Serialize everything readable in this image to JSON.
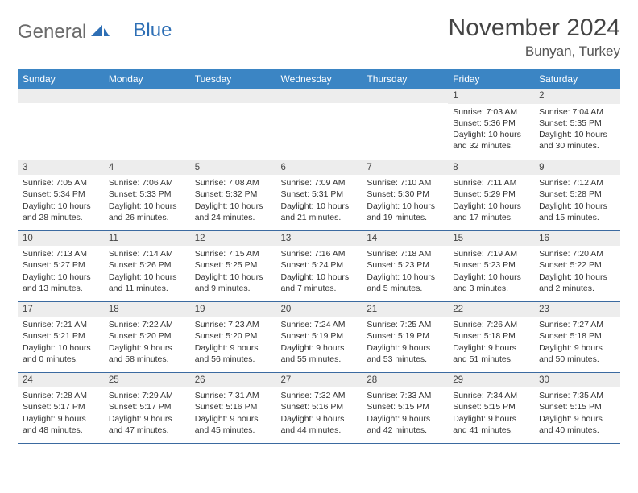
{
  "logo": {
    "part1": "General",
    "part2": "Blue"
  },
  "title": "November 2024",
  "location": "Bunyan, Turkey",
  "colors": {
    "header_bg": "#3b85c4",
    "header_text": "#ffffff",
    "daynum_bg": "#ededed",
    "border": "#3b6aa0",
    "text": "#333333",
    "logo_gray": "#6b6b6b",
    "logo_blue": "#2e6fb5"
  },
  "weekdays": [
    "Sunday",
    "Monday",
    "Tuesday",
    "Wednesday",
    "Thursday",
    "Friday",
    "Saturday"
  ],
  "weeks": [
    [
      null,
      null,
      null,
      null,
      null,
      {
        "n": "1",
        "sunrise": "7:03 AM",
        "sunset": "5:36 PM",
        "daylight": "10 hours and 32 minutes."
      },
      {
        "n": "2",
        "sunrise": "7:04 AM",
        "sunset": "5:35 PM",
        "daylight": "10 hours and 30 minutes."
      }
    ],
    [
      {
        "n": "3",
        "sunrise": "7:05 AM",
        "sunset": "5:34 PM",
        "daylight": "10 hours and 28 minutes."
      },
      {
        "n": "4",
        "sunrise": "7:06 AM",
        "sunset": "5:33 PM",
        "daylight": "10 hours and 26 minutes."
      },
      {
        "n": "5",
        "sunrise": "7:08 AM",
        "sunset": "5:32 PM",
        "daylight": "10 hours and 24 minutes."
      },
      {
        "n": "6",
        "sunrise": "7:09 AM",
        "sunset": "5:31 PM",
        "daylight": "10 hours and 21 minutes."
      },
      {
        "n": "7",
        "sunrise": "7:10 AM",
        "sunset": "5:30 PM",
        "daylight": "10 hours and 19 minutes."
      },
      {
        "n": "8",
        "sunrise": "7:11 AM",
        "sunset": "5:29 PM",
        "daylight": "10 hours and 17 minutes."
      },
      {
        "n": "9",
        "sunrise": "7:12 AM",
        "sunset": "5:28 PM",
        "daylight": "10 hours and 15 minutes."
      }
    ],
    [
      {
        "n": "10",
        "sunrise": "7:13 AM",
        "sunset": "5:27 PM",
        "daylight": "10 hours and 13 minutes."
      },
      {
        "n": "11",
        "sunrise": "7:14 AM",
        "sunset": "5:26 PM",
        "daylight": "10 hours and 11 minutes."
      },
      {
        "n": "12",
        "sunrise": "7:15 AM",
        "sunset": "5:25 PM",
        "daylight": "10 hours and 9 minutes."
      },
      {
        "n": "13",
        "sunrise": "7:16 AM",
        "sunset": "5:24 PM",
        "daylight": "10 hours and 7 minutes."
      },
      {
        "n": "14",
        "sunrise": "7:18 AM",
        "sunset": "5:23 PM",
        "daylight": "10 hours and 5 minutes."
      },
      {
        "n": "15",
        "sunrise": "7:19 AM",
        "sunset": "5:23 PM",
        "daylight": "10 hours and 3 minutes."
      },
      {
        "n": "16",
        "sunrise": "7:20 AM",
        "sunset": "5:22 PM",
        "daylight": "10 hours and 2 minutes."
      }
    ],
    [
      {
        "n": "17",
        "sunrise": "7:21 AM",
        "sunset": "5:21 PM",
        "daylight": "10 hours and 0 minutes."
      },
      {
        "n": "18",
        "sunrise": "7:22 AM",
        "sunset": "5:20 PM",
        "daylight": "9 hours and 58 minutes."
      },
      {
        "n": "19",
        "sunrise": "7:23 AM",
        "sunset": "5:20 PM",
        "daylight": "9 hours and 56 minutes."
      },
      {
        "n": "20",
        "sunrise": "7:24 AM",
        "sunset": "5:19 PM",
        "daylight": "9 hours and 55 minutes."
      },
      {
        "n": "21",
        "sunrise": "7:25 AM",
        "sunset": "5:19 PM",
        "daylight": "9 hours and 53 minutes."
      },
      {
        "n": "22",
        "sunrise": "7:26 AM",
        "sunset": "5:18 PM",
        "daylight": "9 hours and 51 minutes."
      },
      {
        "n": "23",
        "sunrise": "7:27 AM",
        "sunset": "5:18 PM",
        "daylight": "9 hours and 50 minutes."
      }
    ],
    [
      {
        "n": "24",
        "sunrise": "7:28 AM",
        "sunset": "5:17 PM",
        "daylight": "9 hours and 48 minutes."
      },
      {
        "n": "25",
        "sunrise": "7:29 AM",
        "sunset": "5:17 PM",
        "daylight": "9 hours and 47 minutes."
      },
      {
        "n": "26",
        "sunrise": "7:31 AM",
        "sunset": "5:16 PM",
        "daylight": "9 hours and 45 minutes."
      },
      {
        "n": "27",
        "sunrise": "7:32 AM",
        "sunset": "5:16 PM",
        "daylight": "9 hours and 44 minutes."
      },
      {
        "n": "28",
        "sunrise": "7:33 AM",
        "sunset": "5:15 PM",
        "daylight": "9 hours and 42 minutes."
      },
      {
        "n": "29",
        "sunrise": "7:34 AM",
        "sunset": "5:15 PM",
        "daylight": "9 hours and 41 minutes."
      },
      {
        "n": "30",
        "sunrise": "7:35 AM",
        "sunset": "5:15 PM",
        "daylight": "9 hours and 40 minutes."
      }
    ]
  ],
  "labels": {
    "sunrise": "Sunrise: ",
    "sunset": "Sunset: ",
    "daylight": "Daylight: "
  }
}
